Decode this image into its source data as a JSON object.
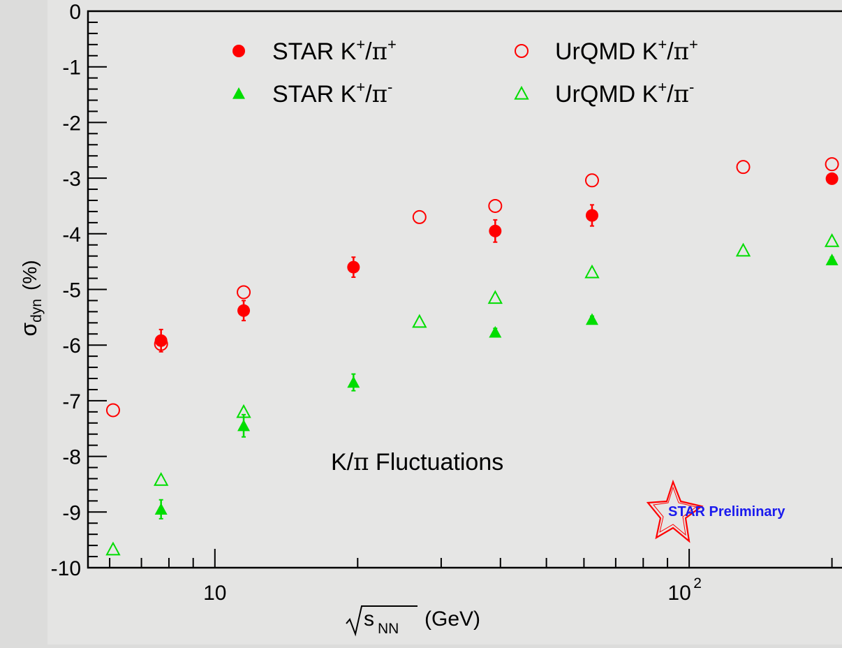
{
  "chart_data": {
    "type": "scatter",
    "x_scale": "log",
    "xlabel_root": "s",
    "xlabel_sub": "NN",
    "xlabel_unit": "(GeV)",
    "ylabel_main": "σ",
    "ylabel_sub": "dyn",
    "ylabel_unit": "(%)",
    "xlim": [
      5.4,
      210
    ],
    "ylim": [
      -10,
      0
    ],
    "y_ticks": [
      0,
      -1,
      -2,
      -3,
      -4,
      -5,
      -6,
      -7,
      -8,
      -9,
      -10
    ],
    "y_tick_labels": [
      "0",
      "-1",
      "-2",
      "-3",
      "-4",
      "-5",
      "-6",
      "-7",
      "-8",
      "-9",
      "-10"
    ],
    "x_tick_labels": {
      "ten": "10",
      "hundred_base": "10",
      "hundred_exp": "2"
    },
    "grid": false,
    "legend_position": "top",
    "annotation": {
      "prefix": "K/",
      "pi": "π",
      "suffix": " Fluctuations"
    },
    "logo_text": "STAR Preliminary",
    "series": [
      {
        "name": "STAR K+/π+",
        "legend": {
          "base": "STAR K",
          "sup1": "+",
          "slash": "/",
          "pi": "π",
          "sup2": "+"
        },
        "marker": "filled-circle",
        "color": "#ff0000",
        "points": [
          {
            "x": 7.7,
            "y": -5.92,
            "err": 0.2
          },
          {
            "x": 11.5,
            "y": -5.38,
            "err": 0.18
          },
          {
            "x": 19.6,
            "y": -4.6,
            "err": 0.18
          },
          {
            "x": 39,
            "y": -3.95,
            "err": 0.2
          },
          {
            "x": 62.4,
            "y": -3.67,
            "err": 0.19
          },
          {
            "x": 200,
            "y": -3.01,
            "err": 0.05
          }
        ]
      },
      {
        "name": "STAR K+/π-",
        "legend": {
          "base": "STAR K",
          "sup1": "+",
          "slash": "/",
          "pi": "π",
          "sup2": "-"
        },
        "marker": "filled-triangle",
        "color": "#00dd00",
        "points": [
          {
            "x": 7.7,
            "y": -8.95,
            "err": 0.17
          },
          {
            "x": 11.5,
            "y": -7.45,
            "err": 0.2
          },
          {
            "x": 19.6,
            "y": -6.67,
            "err": 0.15
          },
          {
            "x": 39,
            "y": -5.77,
            "err": 0.07
          },
          {
            "x": 62.4,
            "y": -5.54,
            "err": 0.06
          },
          {
            "x": 200,
            "y": -4.47,
            "err": 0.05
          }
        ]
      },
      {
        "name": "UrQMD K+/π+",
        "legend": {
          "base": "UrQMD K",
          "sup1": "+",
          "slash": "/",
          "pi": "π",
          "sup2": "+"
        },
        "marker": "open-circle",
        "color": "#ff0000",
        "points": [
          {
            "x": 6.1,
            "y": -7.17
          },
          {
            "x": 7.7,
            "y": -5.98
          },
          {
            "x": 11.5,
            "y": -5.05
          },
          {
            "x": 27,
            "y": -3.7
          },
          {
            "x": 39,
            "y": -3.5
          },
          {
            "x": 62.4,
            "y": -3.04
          },
          {
            "x": 130,
            "y": -2.8
          },
          {
            "x": 200,
            "y": -2.75
          }
        ]
      },
      {
        "name": "UrQMD K+/π-",
        "legend": {
          "base": "UrQMD K",
          "sup1": "+",
          "slash": "/",
          "pi": "π",
          "sup2": "-"
        },
        "marker": "open-triangle",
        "color": "#00dd00",
        "points": [
          {
            "x": 6.1,
            "y": -9.67
          },
          {
            "x": 7.7,
            "y": -8.42
          },
          {
            "x": 11.5,
            "y": -7.2
          },
          {
            "x": 27,
            "y": -5.58
          },
          {
            "x": 39,
            "y": -5.15
          },
          {
            "x": 62.4,
            "y": -4.69
          },
          {
            "x": 130,
            "y": -4.3
          },
          {
            "x": 200,
            "y": -4.13
          }
        ]
      }
    ]
  }
}
